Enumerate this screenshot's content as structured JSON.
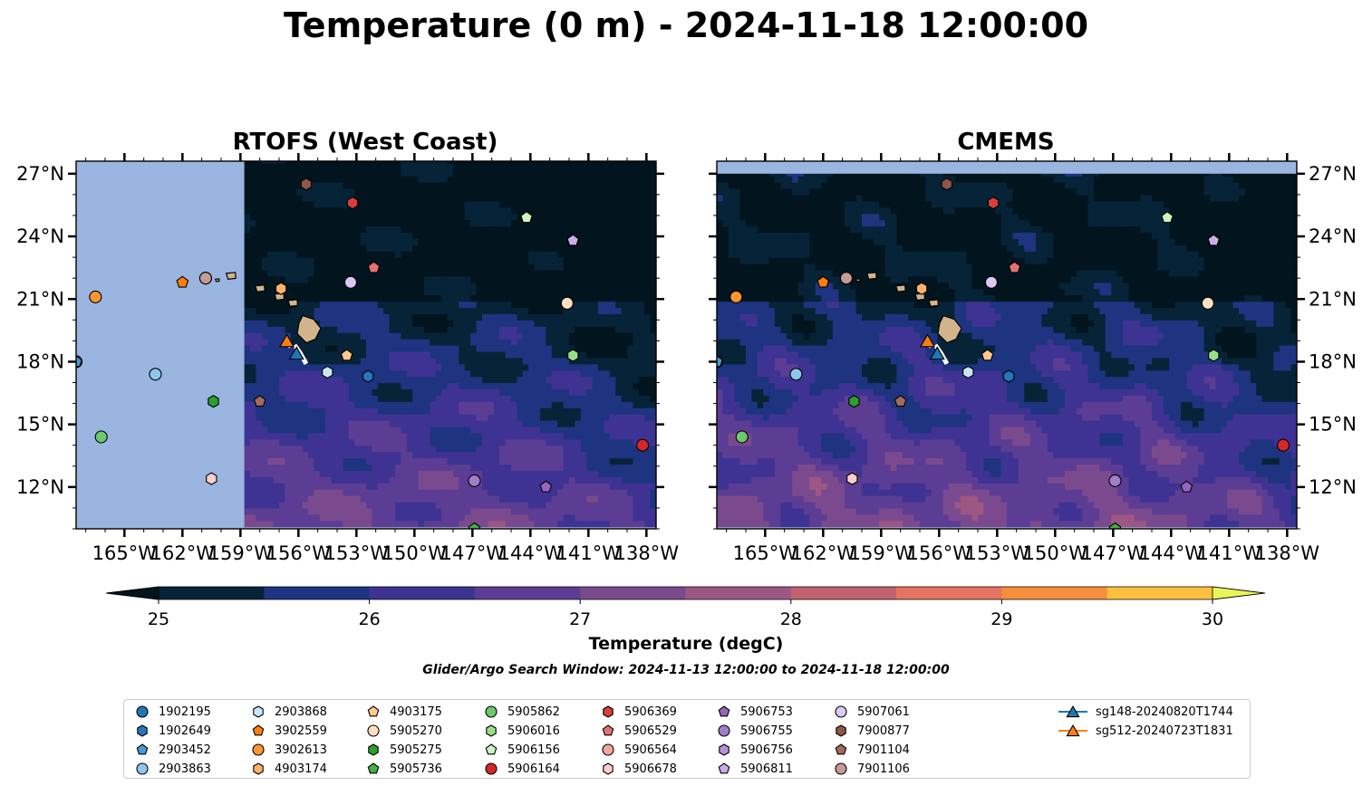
{
  "title": "Temperature (0 m) - 2024-11-18 12:00:00",
  "panels": [
    {
      "title": "RTOFS (West Coast)",
      "model": "rtofs"
    },
    {
      "title": "CMEMS",
      "model": "cmems"
    }
  ],
  "axes": {
    "lon_range": [
      -167.5,
      -137.5
    ],
    "lat_range": [
      10.0,
      27.6
    ],
    "lon_ticks": [
      -165,
      -162,
      -159,
      -156,
      -153,
      -150,
      -147,
      -144,
      -141,
      -138
    ],
    "lon_tick_labels": [
      "165°W",
      "162°W",
      "159°W",
      "156°W",
      "153°W",
      "150°W",
      "147°W",
      "144°W",
      "141°W",
      "138°W"
    ],
    "lat_ticks": [
      12,
      15,
      18,
      21,
      24,
      27
    ],
    "lat_tick_labels": [
      "12°N",
      "15°N",
      "18°N",
      "21°N",
      "24°N",
      "27°N"
    ]
  },
  "colorbar": {
    "label": "Temperature (degC)",
    "range": [
      25,
      30
    ],
    "tick_values": [
      25,
      26,
      27,
      28,
      29,
      30
    ],
    "tick_labels": [
      "25",
      "26",
      "27",
      "28",
      "29",
      "30"
    ],
    "colors": [
      "#072337",
      "#1f3480",
      "#3e3392",
      "#5c3d94",
      "#7b4a8e",
      "#9c5783",
      "#c2626f",
      "#e47461",
      "#f68f3c",
      "#fbc03e"
    ],
    "under_color": "#02151f",
    "over_color": "#e8f558",
    "extend": "both"
  },
  "search_window": "Glider/Argo Search Window: 2024-11-13 12:00:00 to 2024-11-18 12:00:00",
  "colors": {
    "rtofs_nodata": "#9ab5df",
    "cmems_nodata": "#9ab5df",
    "land": "#d2b48c",
    "glider_track": "#ffffff"
  },
  "legend": [
    {
      "label": "1902195",
      "marker": "circle",
      "color": "#1f77b4"
    },
    {
      "label": "1902649",
      "marker": "hexagon",
      "color": "#2677b9"
    },
    {
      "label": "2903452",
      "marker": "pentagon",
      "color": "#4a9ad4"
    },
    {
      "label": "2903863",
      "marker": "circle",
      "color": "#8ec7ec"
    },
    {
      "label": "2903868",
      "marker": "hexagon",
      "color": "#c9e5f7"
    },
    {
      "label": "3902559",
      "marker": "pentagon",
      "color": "#ff7f0e"
    },
    {
      "label": "3902613",
      "marker": "circle",
      "color": "#ff9532"
    },
    {
      "label": "4903174",
      "marker": "hexagon",
      "color": "#ffb26b"
    },
    {
      "label": "4903175",
      "marker": "pentagon",
      "color": "#ffc98f"
    },
    {
      "label": "5905270",
      "marker": "circle",
      "color": "#fde0c3"
    },
    {
      "label": "5905275",
      "marker": "hexagon",
      "color": "#2ca02c"
    },
    {
      "label": "5905736",
      "marker": "pentagon",
      "color": "#45b045"
    },
    {
      "label": "5905862",
      "marker": "circle",
      "color": "#6cc96c"
    },
    {
      "label": "5906016",
      "marker": "hexagon",
      "color": "#98df8a"
    },
    {
      "label": "5906156",
      "marker": "pentagon",
      "color": "#c8f5c0"
    },
    {
      "label": "5906164",
      "marker": "circle",
      "color": "#d62728"
    },
    {
      "label": "5906369",
      "marker": "hexagon",
      "color": "#d93d3d"
    },
    {
      "label": "5906529",
      "marker": "pentagon",
      "color": "#e67070"
    },
    {
      "label": "5906564",
      "marker": "circle",
      "color": "#f3a5a0"
    },
    {
      "label": "5906678",
      "marker": "hexagon",
      "color": "#f8cfcc"
    },
    {
      "label": "5906753",
      "marker": "pentagon",
      "color": "#9467bd"
    },
    {
      "label": "5906755",
      "marker": "circle",
      "color": "#a07dc6"
    },
    {
      "label": "5906756",
      "marker": "hexagon",
      "color": "#b494d6"
    },
    {
      "label": "5906811",
      "marker": "pentagon",
      "color": "#c9aeea"
    },
    {
      "label": "5907061",
      "marker": "circle",
      "color": "#dcc8f2"
    },
    {
      "label": "7900877",
      "marker": "hexagon",
      "color": "#8c564b"
    },
    {
      "label": "7901104",
      "marker": "pentagon",
      "color": "#a06a5c"
    },
    {
      "label": "7901106",
      "marker": "circle",
      "color": "#c49c94"
    },
    {
      "label": "sg148-20240820T1744",
      "marker": "triangle",
      "color": "#1f77b4",
      "line": true
    },
    {
      "label": "sg512-20240723T1831",
      "marker": "triangle",
      "color": "#ff7f0e",
      "line": true
    }
  ],
  "floats": [
    {
      "id": "1902195",
      "lon": -167.5,
      "lat": 18.0
    },
    {
      "id": "1902649",
      "lon": -152.4,
      "lat": 17.3
    },
    {
      "id": "2903452",
      "lon": -167.5,
      "lat": 18.0
    },
    {
      "id": "2903863",
      "lon": -163.4,
      "lat": 17.4
    },
    {
      "id": "2903868",
      "lon": -154.5,
      "lat": 17.5
    },
    {
      "id": "3902559",
      "lon": -162.0,
      "lat": 21.8
    },
    {
      "id": "3902613",
      "lon": -166.5,
      "lat": 21.1
    },
    {
      "id": "4903174",
      "lon": -156.9,
      "lat": 21.5
    },
    {
      "id": "4903175",
      "lon": -153.5,
      "lat": 18.3
    },
    {
      "id": "5905270",
      "lon": -142.1,
      "lat": 20.8
    },
    {
      "id": "5905275",
      "lon": -160.4,
      "lat": 16.1
    },
    {
      "id": "5905736",
      "lon": -146.9,
      "lat": 10.0
    },
    {
      "id": "5905862",
      "lon": -166.2,
      "lat": 14.4
    },
    {
      "id": "5906016",
      "lon": -141.8,
      "lat": 18.3
    },
    {
      "id": "5906156",
      "lon": -144.2,
      "lat": 24.9
    },
    {
      "id": "5906164",
      "lon": -138.2,
      "lat": 14.0
    },
    {
      "id": "5906369",
      "lon": -153.2,
      "lat": 25.6
    },
    {
      "id": "5906529",
      "lon": -152.1,
      "lat": 22.5
    },
    {
      "id": "5906564",
      "lon": -160.8,
      "lat": 22.0
    },
    {
      "id": "5906678",
      "lon": -160.5,
      "lat": 12.4
    },
    {
      "id": "5906753",
      "lon": -143.2,
      "lat": 12.0
    },
    {
      "id": "5906755",
      "lon": -146.9,
      "lat": 12.3
    },
    {
      "id": "5906756",
      "lon": -141.8,
      "lat": 23.8
    },
    {
      "id": "5906811",
      "lon": -141.8,
      "lat": 23.8
    },
    {
      "id": "5907061",
      "lon": -153.3,
      "lat": 21.8
    },
    {
      "id": "7900877",
      "lon": -155.6,
      "lat": 26.5
    },
    {
      "id": "7901104",
      "lon": -158.0,
      "lat": 16.1
    },
    {
      "id": "7901106",
      "lon": -160.8,
      "lat": 22.0
    }
  ],
  "gliders": [
    {
      "id": "sg148-20240820T1744",
      "lon": -156.1,
      "lat": 18.4,
      "track": [
        [
          -156.2,
          18.8
        ],
        [
          -155.9,
          18.4
        ],
        [
          -155.6,
          17.9
        ]
      ]
    },
    {
      "id": "sg512-20240723T1831",
      "lon": -156.6,
      "lat": 19.0,
      "track": [
        [
          -156.6,
          19.0
        ],
        [
          -156.4,
          18.7
        ]
      ]
    }
  ],
  "islands": [
    {
      "name": "Hawaii",
      "lon": -155.5,
      "lat": 19.6
    },
    {
      "name": "Maui",
      "lon": -156.3,
      "lat": 20.8
    },
    {
      "name": "Molokai",
      "lon": -157.0,
      "lat": 21.1
    },
    {
      "name": "Oahu",
      "lon": -158.0,
      "lat": 21.5
    },
    {
      "name": "Kauai",
      "lon": -159.5,
      "lat": 22.1
    },
    {
      "name": "Niihau",
      "lon": -160.2,
      "lat": 21.9
    }
  ]
}
